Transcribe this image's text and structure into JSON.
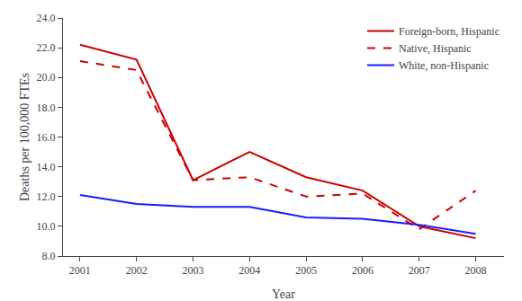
{
  "chart_data": {
    "type": "line",
    "x": [
      2001,
      2002,
      2003,
      2004,
      2005,
      2006,
      2007,
      2008
    ],
    "series": [
      {
        "name": "Foreign-born, Hispanic",
        "color": "#cc0000",
        "line_style": "solid",
        "values": [
          22.2,
          21.2,
          13.1,
          15.0,
          13.3,
          12.4,
          10.0,
          9.2
        ]
      },
      {
        "name": "Native, Hispanic",
        "color": "#cc0000",
        "line_style": "dashed",
        "values": [
          21.1,
          20.5,
          13.1,
          13.3,
          12.0,
          12.2,
          9.8,
          12.4
        ]
      },
      {
        "name": "White, non-Hispanic",
        "color": "#1a1aff",
        "line_style": "solid",
        "values": [
          12.1,
          11.5,
          11.3,
          11.3,
          10.6,
          10.5,
          10.1,
          9.5
        ]
      }
    ],
    "xlabel": "Year",
    "ylabel": "Deaths per 100,000 FTEs",
    "xlim": [
      2000.7,
      2008.5
    ],
    "xticks": [
      2001,
      2002,
      2003,
      2004,
      2005,
      2006,
      2007,
      2008
    ],
    "ylim": [
      8.0,
      24.0
    ],
    "yticks": [
      {
        "value": 8,
        "label": "8.0"
      },
      {
        "value": 10,
        "label": "10.0"
      },
      {
        "value": 12,
        "label": "12.0"
      },
      {
        "value": 14,
        "label": "14.0"
      },
      {
        "value": 16,
        "label": "16.0"
      },
      {
        "value": 18,
        "label": "18.0"
      },
      {
        "value": 20,
        "label": "20.0"
      },
      {
        "value": 22,
        "label": "22.0"
      },
      {
        "value": 24,
        "label": "24.0"
      }
    ],
    "grid": false,
    "legend": "upper right"
  }
}
